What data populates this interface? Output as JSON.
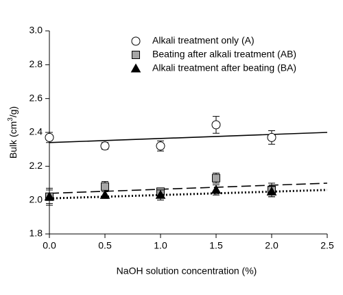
{
  "chart_data": {
    "type": "scatter",
    "xlabel": "NaOH solution concentration (%)",
    "ylabel": {
      "text": "Bulk (cm",
      "sup": "3",
      "end": "/g)"
    },
    "x": [
      0,
      0.5,
      1,
      1.5,
      2
    ],
    "xlim": [
      0,
      2.5
    ],
    "xticks": [
      {
        "value": 0,
        "label": "0.0"
      },
      {
        "value": 0.5,
        "label": "0.5"
      },
      {
        "value": 1,
        "label": "1.0"
      },
      {
        "value": 1.5,
        "label": "1.5"
      },
      {
        "value": 2,
        "label": "2.0"
      },
      {
        "value": 2.5,
        "label": "2.5"
      }
    ],
    "ylim": [
      1.8,
      3.0
    ],
    "yticks": [
      {
        "value": 1.8,
        "label": "1.8"
      },
      {
        "value": 2.0,
        "label": "2.0"
      },
      {
        "value": 2.2,
        "label": "2.2"
      },
      {
        "value": 2.4,
        "label": "2.4"
      },
      {
        "value": 2.6,
        "label": "2.6"
      },
      {
        "value": 2.8,
        "label": "2.8"
      },
      {
        "value": 3.0,
        "label": "3.0"
      }
    ],
    "legend": "upper right",
    "series": [
      {
        "name": "Alkali treatment only (A)",
        "marker": "circle",
        "color": "#ffffff",
        "line_style": "solid",
        "values": [
          2.37,
          2.32,
          2.32,
          2.445,
          2.37
        ],
        "errors": [
          0.03,
          0.02,
          0.03,
          0.05,
          0.04
        ],
        "trend": {
          "x": [
            0,
            2.5
          ],
          "y": [
            2.34,
            2.4
          ]
        }
      },
      {
        "name": "Beating after alkali treatment (AB)",
        "marker": "square",
        "color": "#a6a6a6",
        "line_style": "dashed",
        "values": [
          2.02,
          2.08,
          2.05,
          2.13,
          2.06
        ],
        "errors": [
          0.05,
          0.03,
          0.02,
          0.03,
          0.04
        ],
        "trend": {
          "x": [
            0,
            2.5
          ],
          "y": [
            2.04,
            2.1
          ]
        }
      },
      {
        "name": "Alkali treatment after beating (BA)",
        "marker": "triangle",
        "color": "#000000",
        "line_style": "dotted",
        "values": [
          2.02,
          2.03,
          2.03,
          2.06,
          2.05
        ],
        "errors": [
          0.04,
          0.02,
          0.03,
          0.03,
          0.03
        ],
        "trend": {
          "x": [
            0,
            2.5
          ],
          "y": [
            2.01,
            2.06
          ]
        }
      }
    ]
  }
}
